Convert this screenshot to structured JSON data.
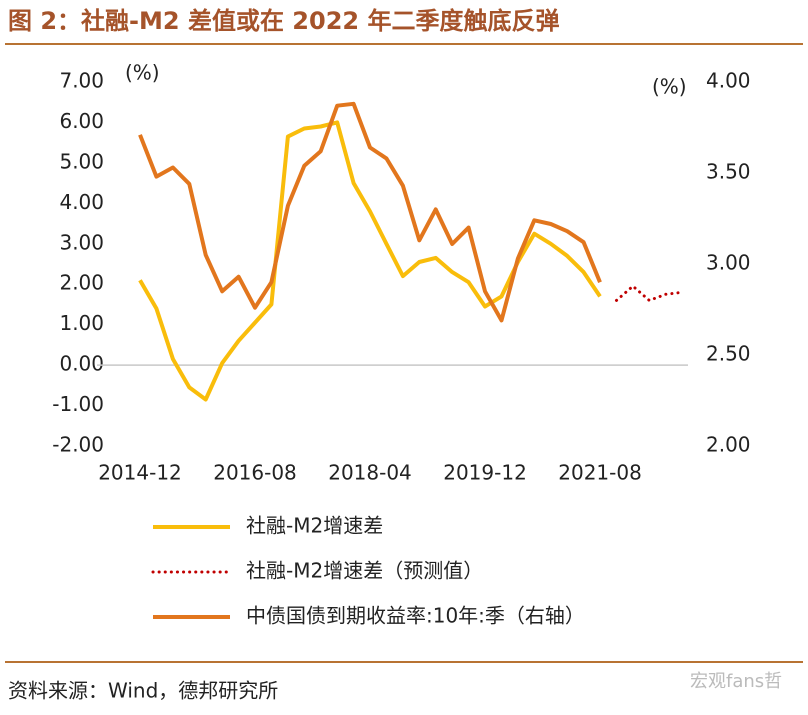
{
  "chart_data": {
    "type": "line",
    "title": "图 2：社融-M2 差值或在 2022 年二季度触底反弹",
    "y_unit": "(%)",
    "y2_unit": "(%)",
    "source": "资料来源：Wind，德邦研究所",
    "watermark": "宏观fans哲",
    "categories": [
      "2014-12",
      null,
      null,
      null,
      null,
      null,
      null,
      "2016-08",
      null,
      null,
      null,
      null,
      null,
      null,
      "2018-04",
      null,
      null,
      null,
      null,
      null,
      null,
      "2019-12",
      null,
      null,
      null,
      null,
      null,
      null,
      "2021-08",
      null,
      null,
      null,
      null,
      null
    ],
    "ylim": [
      -2,
      7
    ],
    "yticks": [
      {
        "value": -2,
        "label": "-2.00"
      },
      {
        "value": -1,
        "label": "-1.00"
      },
      {
        "value": 0,
        "label": "0.00"
      },
      {
        "value": 1,
        "label": "1.00"
      },
      {
        "value": 2,
        "label": "2.00"
      },
      {
        "value": 3,
        "label": "3.00"
      },
      {
        "value": 4,
        "label": "4.00"
      },
      {
        "value": 5,
        "label": "5.00"
      },
      {
        "value": 6,
        "label": "6.00"
      },
      {
        "value": 7,
        "label": "7.00"
      }
    ],
    "y2lim": [
      2,
      4
    ],
    "y2ticks": [
      {
        "value": 2,
        "label": "2.00"
      },
      {
        "value": 2.5,
        "label": "2.50"
      },
      {
        "value": 3,
        "label": "3.00"
      },
      {
        "value": 3.5,
        "label": "3.50"
      },
      {
        "value": 4,
        "label": "4.00"
      }
    ],
    "series": [
      {
        "name": "社融-M2增速差",
        "color": "#f9bd0b",
        "style": "solid",
        "values": [
          2.1,
          1.4,
          0.15,
          -0.55,
          -0.85,
          0.05,
          0.6,
          1.05,
          1.5,
          5.65,
          5.85,
          5.9,
          6.0,
          4.5,
          3.8,
          3.0,
          2.2,
          2.55,
          2.65,
          2.3,
          2.05,
          1.45,
          1.7,
          2.55,
          3.25,
          3.0,
          2.7,
          2.3,
          1.7,
          null,
          null,
          null,
          null,
          null
        ]
      },
      {
        "name": "社融-M2增速差（预测值）",
        "color": "#c00000",
        "style": "dotted",
        "values": [
          null,
          null,
          null,
          null,
          null,
          null,
          null,
          null,
          null,
          null,
          null,
          null,
          null,
          null,
          null,
          null,
          null,
          null,
          null,
          null,
          null,
          null,
          null,
          null,
          null,
          null,
          null,
          null,
          null,
          1.6,
          1.95,
          1.6,
          1.75,
          1.8
        ]
      },
      {
        "name": "中债国债到期收益率:10年:季（右轴）",
        "color": "#e2761d",
        "style": "solid",
        "axis": "y2",
        "values": [
          3.71,
          3.48,
          3.53,
          3.44,
          3.05,
          2.85,
          2.93,
          2.76,
          2.9,
          3.32,
          3.54,
          3.62,
          3.87,
          3.88,
          3.64,
          3.58,
          3.43,
          3.13,
          3.3,
          3.11,
          3.2,
          2.85,
          2.69,
          3.03,
          3.24,
          3.22,
          3.18,
          3.12,
          2.9,
          null,
          null,
          null,
          null,
          null
        ]
      }
    ]
  }
}
